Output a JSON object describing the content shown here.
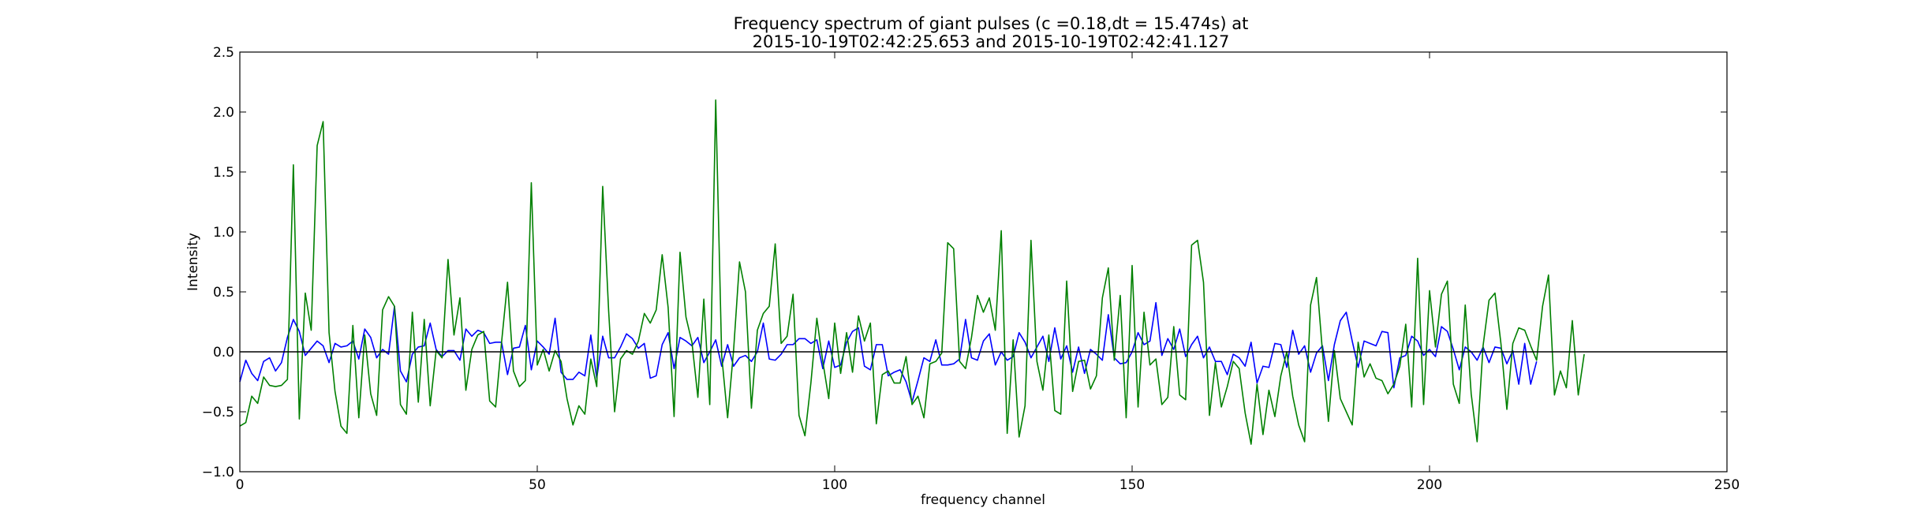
{
  "chart_data": {
    "type": "line",
    "title_lines": [
      "Frequency spectrum of giant pulses (c =0.18,dt = 15.474s) at",
      "2015-10-19T02:42:25.653 and 2015-10-19T02:42:41.127"
    ],
    "xlabel": "frequency channel",
    "ylabel": "Intensity",
    "xlim": [
      0,
      250
    ],
    "ylim": [
      -1.0,
      2.5
    ],
    "xticks": [
      0,
      50,
      100,
      150,
      200,
      250
    ],
    "xtick_labels": [
      "0",
      "50",
      "100",
      "150",
      "200",
      "250"
    ],
    "yticks": [
      -1.0,
      -0.5,
      0.0,
      0.5,
      1.0,
      1.5,
      2.0,
      2.5
    ],
    "ytick_labels": [
      "−1.0",
      "−0.5",
      "0.0",
      "0.5",
      "1.0",
      "1.5",
      "2.0",
      "2.5"
    ],
    "grid": false,
    "hline_y": 0.0,
    "series": [
      {
        "color": "#0000ff",
        "values": [
          -0.25,
          -0.07,
          -0.18,
          -0.24,
          -0.08,
          -0.05,
          -0.16,
          -0.09,
          0.12,
          0.27,
          0.17,
          -0.03,
          0.03,
          0.09,
          0.05,
          -0.09,
          0.07,
          0.04,
          0.05,
          0.09,
          -0.06,
          0.19,
          0.12,
          -0.05,
          0.02,
          -0.02,
          0.38,
          -0.16,
          -0.25,
          -0.02,
          0.04,
          0.05,
          0.24,
          0.02,
          -0.04,
          0.01,
          0.01,
          -0.07,
          0.19,
          0.13,
          0.18,
          0.16,
          0.07,
          0.08,
          0.08,
          -0.19,
          0.03,
          0.04,
          0.22,
          -0.15,
          0.09,
          0.04,
          -0.02,
          0.28,
          -0.17,
          -0.23,
          -0.23,
          -0.17,
          -0.2,
          0.14,
          -0.22,
          0.13,
          -0.05,
          -0.05,
          0.04,
          0.15,
          0.11,
          0.03,
          0.07,
          -0.22,
          -0.2,
          0.06,
          0.16,
          -0.14,
          0.12,
          0.09,
          0.05,
          0.12,
          -0.09,
          0.0,
          0.1,
          -0.12,
          0.06,
          -0.12,
          -0.05,
          -0.03,
          -0.08,
          0.0,
          0.24,
          -0.06,
          -0.07,
          -0.02,
          0.06,
          0.06,
          0.11,
          0.11,
          0.07,
          0.1,
          -0.14,
          0.09,
          -0.13,
          -0.11,
          0.08,
          0.17,
          0.2,
          -0.12,
          -0.15,
          0.06,
          0.06,
          -0.2,
          -0.17,
          -0.15,
          -0.25,
          -0.42,
          -0.24,
          -0.05,
          -0.08,
          0.1,
          -0.11,
          -0.11,
          -0.1,
          -0.06,
          0.27,
          -0.05,
          -0.07,
          0.09,
          0.15,
          -0.11,
          0.0,
          -0.07,
          -0.04,
          0.16,
          0.08,
          -0.05,
          0.04,
          0.13,
          -0.08,
          0.2,
          -0.06,
          0.05,
          -0.17,
          0.04,
          -0.18,
          0.02,
          -0.02,
          -0.07,
          0.31,
          -0.05,
          -0.1,
          -0.09,
          0.0,
          0.16,
          0.06,
          0.09,
          0.41,
          -0.03,
          0.11,
          0.02,
          0.19,
          -0.04,
          0.06,
          0.13,
          -0.05,
          0.04,
          -0.08,
          -0.08,
          -0.19,
          -0.02,
          -0.05,
          -0.12,
          0.08,
          -0.26,
          -0.12,
          -0.13,
          0.07,
          0.06,
          -0.13,
          0.18,
          -0.02,
          0.05,
          -0.17,
          -0.01,
          0.05,
          -0.24,
          0.06,
          0.26,
          0.33,
          0.09,
          -0.13,
          0.09,
          0.07,
          0.05,
          0.17,
          0.16,
          -0.3,
          -0.05,
          -0.03,
          0.13,
          0.09,
          -0.03,
          0.02,
          -0.04,
          0.21,
          0.17,
          0.02,
          -0.15,
          0.04,
          0.0,
          -0.07,
          0.04,
          -0.09,
          0.04,
          0.03,
          -0.1,
          0.01,
          -0.27,
          0.07,
          -0.27,
          -0.08
        ]
      },
      {
        "color": "#008000",
        "values": [
          -0.62,
          -0.59,
          -0.37,
          -0.43,
          -0.21,
          -0.28,
          -0.29,
          -0.28,
          -0.23,
          1.56,
          -0.56,
          0.49,
          0.18,
          1.72,
          1.92,
          0.16,
          -0.33,
          -0.62,
          -0.68,
          0.22,
          -0.55,
          0.14,
          -0.35,
          -0.53,
          0.35,
          0.46,
          0.38,
          -0.44,
          -0.52,
          0.33,
          -0.42,
          0.27,
          -0.45,
          0.01,
          -0.05,
          0.77,
          0.14,
          0.45,
          -0.32,
          0.02,
          0.14,
          0.17,
          -0.41,
          -0.46,
          0.08,
          0.58,
          -0.16,
          -0.29,
          -0.24,
          1.41,
          -0.11,
          0.02,
          -0.16,
          0.01,
          -0.08,
          -0.39,
          -0.61,
          -0.45,
          -0.52,
          -0.06,
          -0.29,
          1.38,
          0.34,
          -0.5,
          -0.06,
          0.01,
          -0.02,
          0.09,
          0.32,
          0.24,
          0.35,
          0.81,
          0.37,
          -0.54,
          0.83,
          0.29,
          0.08,
          -0.38,
          0.44,
          -0.44,
          2.1,
          -0.03,
          -0.55,
          0.01,
          0.75,
          0.5,
          -0.47,
          0.18,
          0.32,
          0.38,
          0.9,
          0.07,
          0.13,
          0.48,
          -0.53,
          -0.7,
          -0.26,
          0.28,
          -0.08,
          -0.39,
          0.24,
          -0.18,
          0.16,
          -0.17,
          0.3,
          0.09,
          0.24,
          -0.6,
          -0.19,
          -0.16,
          -0.26,
          -0.26,
          -0.04,
          -0.44,
          -0.37,
          -0.55,
          -0.1,
          -0.08,
          -0.01,
          0.91,
          0.86,
          -0.08,
          -0.14,
          0.12,
          0.47,
          0.33,
          0.45,
          0.18,
          1.01,
          -0.68,
          0.1,
          -0.71,
          -0.45,
          0.93,
          -0.08,
          -0.32,
          0.14,
          -0.49,
          -0.52,
          0.59,
          -0.33,
          -0.08,
          -0.07,
          -0.31,
          -0.2,
          0.45,
          0.7,
          -0.07,
          0.47,
          -0.55,
          0.72,
          -0.46,
          0.33,
          -0.11,
          -0.06,
          -0.44,
          -0.38,
          0.21,
          -0.36,
          -0.4,
          0.89,
          0.93,
          0.58,
          -0.53,
          -0.09,
          -0.46,
          -0.29,
          -0.08,
          -0.14,
          -0.51,
          -0.77,
          -0.27,
          -0.69,
          -0.32,
          -0.54,
          -0.2,
          0.0,
          -0.37,
          -0.61,
          -0.75,
          0.39,
          0.62,
          0.0,
          -0.58,
          0.01,
          -0.39,
          -0.5,
          -0.61,
          0.08,
          -0.21,
          -0.1,
          -0.22,
          -0.24,
          -0.35,
          -0.27,
          -0.12,
          0.23,
          -0.46,
          0.78,
          -0.44,
          0.51,
          0.04,
          0.48,
          0.59,
          -0.27,
          -0.43,
          0.39,
          -0.35,
          -0.75,
          0.05,
          0.43,
          0.49,
          0.07,
          -0.48,
          0.07,
          0.2,
          0.18,
          0.05,
          -0.07,
          0.38,
          0.64,
          -0.36,
          -0.16,
          -0.3,
          0.26,
          -0.36,
          -0.02
        ]
      }
    ]
  }
}
